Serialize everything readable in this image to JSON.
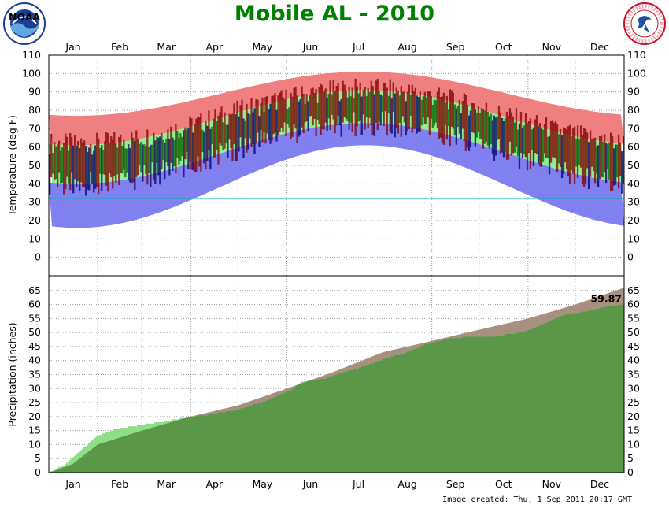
{
  "title": "Mobile AL - 2010",
  "footer": "Image created: Thu, 1 Sep 2011 20:17 GMT",
  "logos": {
    "left": "noaa-logo",
    "right": "nws-logo",
    "left_text": "NOAA",
    "right_text": "NATIONAL WEATHER SERVICE"
  },
  "colors": {
    "record_high": "#f08080",
    "normal_high": "#90ee90",
    "normal_low": "#8080f0",
    "obs_above": "#800000",
    "obs_mid": "#006400",
    "obs_below": "#00006b",
    "freezing": "#00b0b0",
    "precip_obs": "#8fdd87",
    "precip_normal": "#5a9748",
    "precip_deficit": "#a89080",
    "title": "#008000"
  },
  "chart_data": [
    {
      "type": "bar",
      "subtype": "daily-temperature-range",
      "ylabel": "Temperature (deg F)",
      "ylim": [
        -10,
        110
      ],
      "yticks": [
        0,
        10,
        20,
        30,
        40,
        50,
        60,
        70,
        80,
        90,
        100,
        110
      ],
      "months": [
        "Jan",
        "Feb",
        "Mar",
        "Apr",
        "May",
        "Jun",
        "Jul",
        "Aug",
        "Sep",
        "Oct",
        "Nov",
        "Dec"
      ],
      "freezing_line": 32,
      "grid": true,
      "normal_high": {
        "min": 61,
        "max": 91
      },
      "normal_low": {
        "min": 40,
        "max": 73
      },
      "record_high": {
        "min": 77,
        "max": 101
      }
    },
    {
      "type": "area",
      "subtype": "cumulative-precipitation",
      "ylabel": "Precipitation (inches)",
      "ylim": [
        0,
        70
      ],
      "yticks": [
        0,
        5,
        10,
        15,
        20,
        25,
        30,
        35,
        40,
        45,
        50,
        55,
        60,
        65
      ],
      "months": [
        "Jan",
        "Feb",
        "Mar",
        "Apr",
        "May",
        "Jun",
        "Jul",
        "Aug",
        "Sep",
        "Oct",
        "Nov",
        "Dec"
      ],
      "grid": true,
      "annual_total_label": "59.87",
      "observed_cumulative": {
        "doy": [
          0,
          10,
          20,
          30,
          42,
          58,
          75,
          90,
          105,
          120,
          140,
          155,
          160,
          175,
          185,
          195,
          205,
          215,
          228,
          240,
          255,
          270,
          280,
          300,
          310,
          325,
          345,
          355,
          365
        ],
        "inches": [
          0,
          3,
          8,
          13,
          15.5,
          17,
          18.5,
          20,
          21,
          22.5,
          26,
          30,
          32.5,
          33.5,
          35.5,
          37,
          39,
          41,
          43,
          46,
          48,
          48.5,
          48.5,
          50,
          52,
          56,
          58,
          59.5,
          59.87
        ]
      },
      "normal_cumulative": {
        "doy": [
          0,
          15,
          31,
          59,
          90,
          120,
          151,
          181,
          212,
          243,
          273,
          304,
          334,
          365
        ],
        "inches": [
          0,
          3,
          10,
          15,
          20,
          24,
          30,
          36,
          43,
          47,
          51,
          55,
          60,
          66
        ]
      }
    }
  ]
}
